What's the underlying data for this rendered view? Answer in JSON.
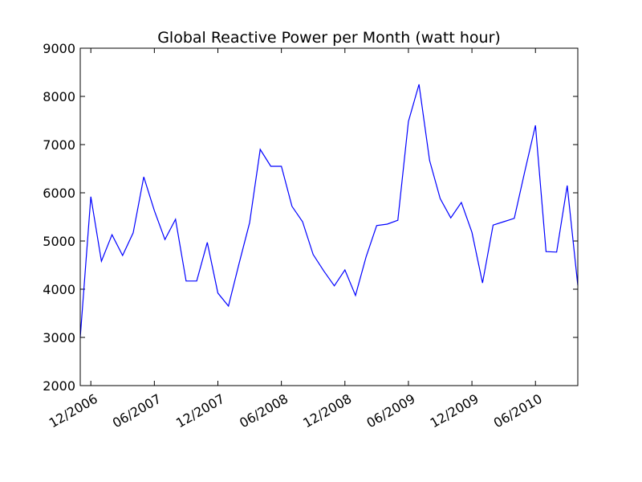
{
  "chart_data": {
    "type": "line",
    "title": "Global Reactive Power per Month (watt hour)",
    "x": [
      "2006-11",
      "2006-12",
      "2007-01",
      "2007-02",
      "2007-03",
      "2007-04",
      "2007-05",
      "2007-06",
      "2007-07",
      "2007-08",
      "2007-09",
      "2007-10",
      "2007-11",
      "2007-12",
      "2008-01",
      "2008-02",
      "2008-03",
      "2008-04",
      "2008-05",
      "2008-06",
      "2008-07",
      "2008-08",
      "2008-09",
      "2008-10",
      "2008-11",
      "2008-12",
      "2009-01",
      "2009-02",
      "2009-03",
      "2009-04",
      "2009-05",
      "2009-06",
      "2009-07",
      "2009-08",
      "2009-09",
      "2009-10",
      "2009-11",
      "2009-12",
      "2010-01",
      "2010-02",
      "2010-03",
      "2010-04",
      "2010-05",
      "2010-06",
      "2010-07",
      "2010-08",
      "2010-09",
      "2010-10"
    ],
    "values": [
      3000,
      5920,
      4580,
      5130,
      4700,
      5170,
      6330,
      5630,
      5030,
      5450,
      4170,
      4170,
      4970,
      3920,
      3650,
      4530,
      5380,
      6900,
      6550,
      6550,
      5720,
      5400,
      4720,
      4380,
      4070,
      4400,
      3870,
      4670,
      5320,
      5350,
      5430,
      7480,
      8250,
      6670,
      5880,
      5480,
      5800,
      5180,
      4130,
      5330,
      5400,
      5470,
      6450,
      7400,
      4780,
      4770,
      6150,
      4080
    ],
    "color": "#0000ff",
    "xlim": [
      "2006-11",
      "2010-10"
    ],
    "xticks": [
      {
        "value": "2006-12",
        "label": "12/2006"
      },
      {
        "value": "2007-06",
        "label": "06/2007"
      },
      {
        "value": "2007-12",
        "label": "12/2007"
      },
      {
        "value": "2008-06",
        "label": "06/2008"
      },
      {
        "value": "2008-12",
        "label": "12/2008"
      },
      {
        "value": "2009-06",
        "label": "06/2009"
      },
      {
        "value": "2009-12",
        "label": "12/2009"
      },
      {
        "value": "2010-06",
        "label": "06/2010"
      }
    ],
    "ylim": [
      2000,
      9000
    ],
    "yticks": [
      2000,
      3000,
      4000,
      5000,
      6000,
      7000,
      8000,
      9000
    ]
  }
}
